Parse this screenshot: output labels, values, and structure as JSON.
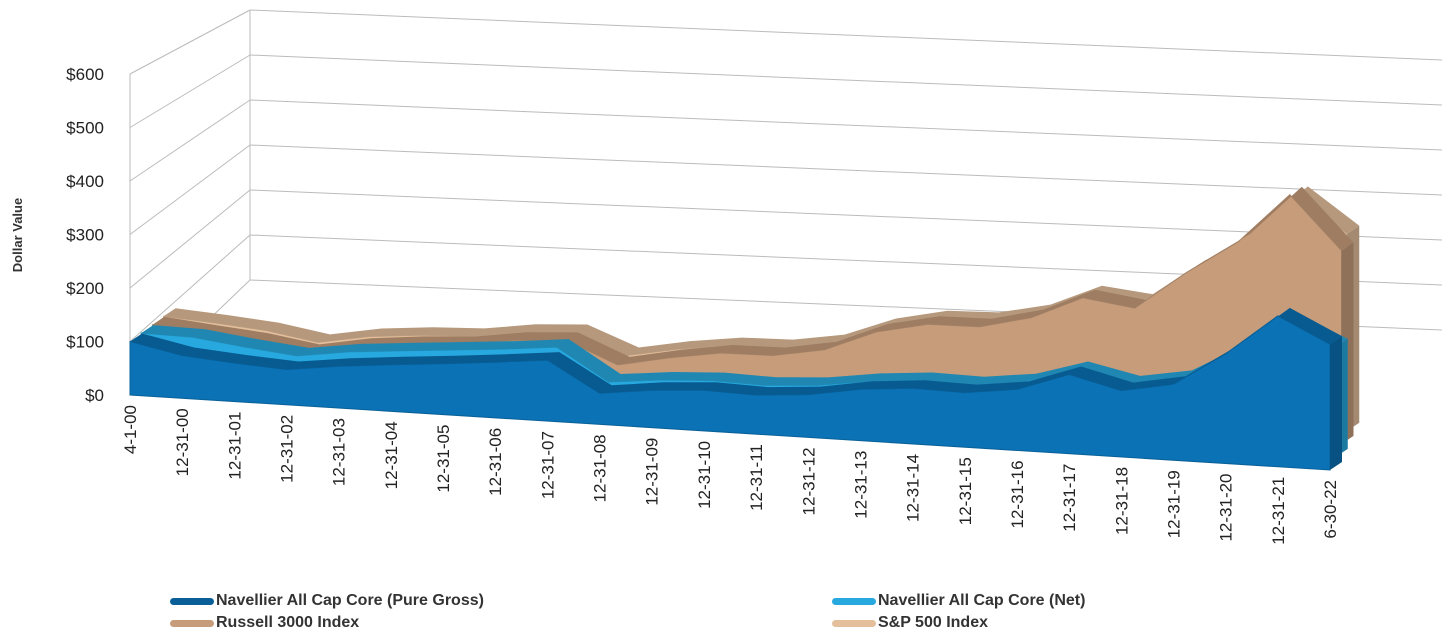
{
  "chart_data": {
    "type": "area",
    "title": "",
    "xlabel": "",
    "ylabel": "Dollar Value",
    "ylim": [
      0,
      600
    ],
    "y_ticks": [
      "$0",
      "$100",
      "$200",
      "$300",
      "$400",
      "$500",
      "$600"
    ],
    "y_tick_values": [
      0,
      100,
      200,
      300,
      400,
      500,
      600
    ],
    "categories": [
      "4-1-00",
      "12-31-00",
      "12-31-01",
      "12-31-02",
      "12-31-03",
      "12-31-04",
      "12-31-05",
      "12-31-06",
      "12-31-07",
      "12-31-08",
      "12-31-09",
      "12-31-10",
      "12-31-11",
      "12-31-12",
      "12-31-13",
      "12-31-14",
      "12-31-15",
      "12-31-16",
      "12-31-17",
      "12-31-18",
      "12-31-19",
      "12-31-20",
      "12-31-21",
      "6-30-22"
    ],
    "grid": true,
    "legend_position": "bottom",
    "series": [
      {
        "name": "S&P 500 Index",
        "color": "#e3bf9b",
        "values": [
          100,
          92,
          82,
          63,
          82,
          91,
          95,
          110,
          116,
          73,
          93,
          107,
          109,
          126,
          167,
          190,
          193,
          216,
          263,
          251,
          330,
          391,
          502,
          424
        ]
      },
      {
        "name": "Russell 3000 Index",
        "color": "#c69c7a",
        "values": [
          100,
          89,
          79,
          62,
          81,
          91,
          97,
          112,
          118,
          74,
          95,
          111,
          112,
          130,
          173,
          195,
          196,
          221,
          268,
          253,
          332,
          401,
          504,
          396
        ]
      },
      {
        "name": "Navellier All Cap Core (Net)",
        "color": "#27a9df",
        "values": [
          100,
          98,
          85,
          74,
          88,
          96,
          104,
          112,
          122,
          60,
          70,
          75,
          72,
          78,
          92,
          100,
          98,
          110,
          140,
          118,
          135,
          190,
          260,
          215
        ]
      },
      {
        "name": "Navellier All Cap Core (Pure Gross)",
        "color": "#0a72b5",
        "values": [
          100,
          80,
          72,
          66,
          78,
          87,
          95,
          104,
          114,
          58,
          70,
          76,
          73,
          80,
          96,
          104,
          102,
          114,
          148,
          124,
          142,
          205,
          282,
          235
        ]
      }
    ]
  }
}
